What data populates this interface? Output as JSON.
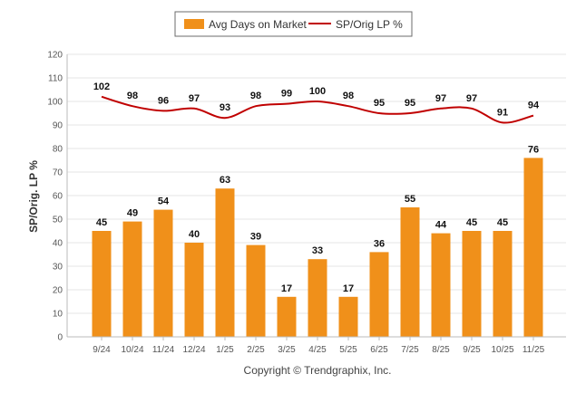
{
  "chart_data": {
    "type": "bar",
    "categories": [
      "9/24",
      "10/24",
      "11/24",
      "12/24",
      "1/25",
      "2/25",
      "3/25",
      "4/25",
      "5/25",
      "6/25",
      "7/25",
      "8/25",
      "9/25",
      "10/25",
      "11/25"
    ],
    "series": [
      {
        "name": "Avg Days on Market",
        "type": "bar",
        "color": "#F0901A",
        "values": [
          45,
          49,
          54,
          40,
          63,
          39,
          17,
          33,
          17,
          36,
          55,
          44,
          45,
          45,
          76
        ]
      },
      {
        "name": "SP/Orig LP %",
        "type": "line",
        "color": "#C00000",
        "values": [
          102,
          98,
          96,
          97,
          93,
          98,
          99,
          100,
          98,
          95,
          95,
          97,
          97,
          91,
          94
        ]
      }
    ],
    "ylabel": "SP/Orig. LP %",
    "ylim": [
      0,
      120
    ],
    "yticks": [
      0,
      10,
      20,
      30,
      40,
      50,
      60,
      70,
      80,
      90,
      100,
      110,
      120
    ],
    "grid": true,
    "legend_position": "top-center"
  },
  "copyright": "Copyright © Trendgraphix, Inc."
}
